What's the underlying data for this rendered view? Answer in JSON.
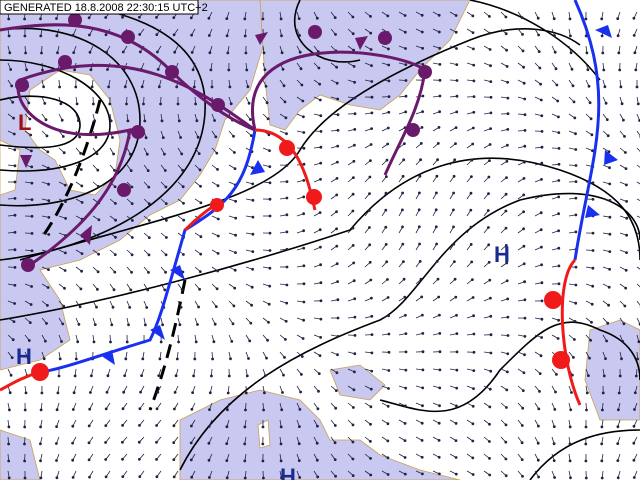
{
  "header": {
    "generated": "GENERATED 18.8.2008 22:30:15 UTC+2"
  },
  "pressure_centers": [
    {
      "label": "L"
    },
    {
      "label": "H"
    },
    {
      "label": "H"
    },
    {
      "label": "H"
    }
  ]
}
